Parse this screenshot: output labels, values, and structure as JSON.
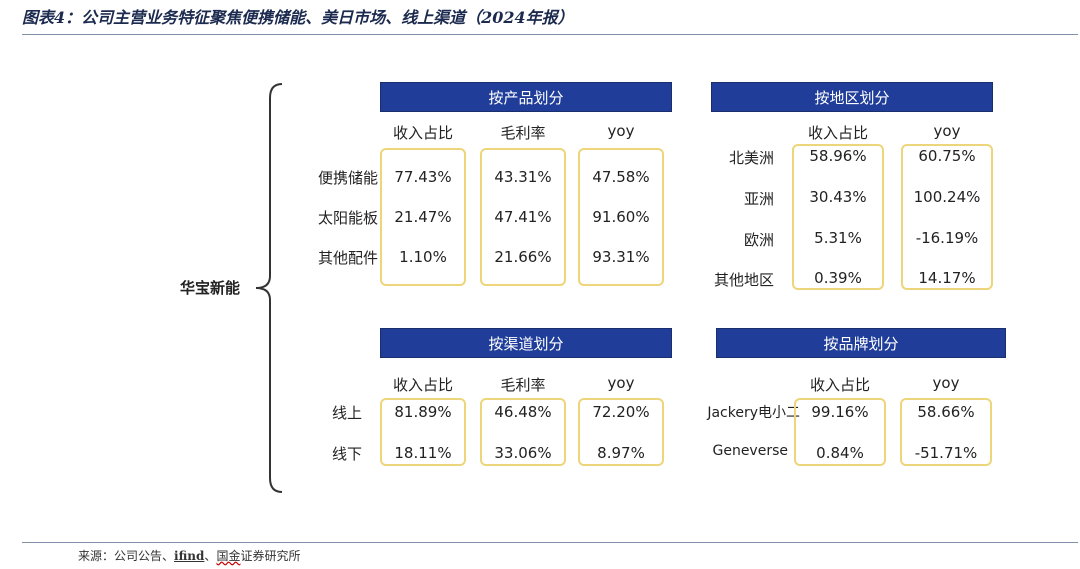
{
  "title": "图表4：公司主营业务特征聚焦便携储能、美日市场、线上渠道（2024年报）",
  "company": "华宝新能",
  "source": {
    "prefix": "来源：公司公告、",
    "ifind": "ifind",
    "sep": "、",
    "guojin": "国金",
    "suffix": "证券研究所"
  },
  "by_product": {
    "header": "按产品划分",
    "columns": [
      "收入占比",
      "毛利率",
      "yoy"
    ],
    "rows": [
      {
        "label": "便携储能",
        "values": [
          "77.43%",
          "43.31%",
          "47.58%"
        ]
      },
      {
        "label": "太阳能板",
        "values": [
          "21.47%",
          "47.41%",
          "91.60%"
        ]
      },
      {
        "label": "其他配件",
        "values": [
          "1.10%",
          "21.66%",
          "93.31%"
        ]
      }
    ]
  },
  "by_region": {
    "header": "按地区划分",
    "columns": [
      "收入占比",
      "yoy"
    ],
    "rows": [
      {
        "label": "北美洲",
        "values": [
          "58.96%",
          "60.75%"
        ]
      },
      {
        "label": "亚洲",
        "values": [
          "30.43%",
          "100.24%"
        ]
      },
      {
        "label": "欧洲",
        "values": [
          "5.31%",
          "-16.19%"
        ]
      },
      {
        "label": "其他地区",
        "values": [
          "0.39%",
          "14.17%"
        ]
      }
    ]
  },
  "by_channel": {
    "header": "按渠道划分",
    "columns": [
      "收入占比",
      "毛利率",
      "yoy"
    ],
    "rows": [
      {
        "label": "线上",
        "values": [
          "81.89%",
          "46.48%",
          "72.20%"
        ]
      },
      {
        "label": "线下",
        "values": [
          "18.11%",
          "33.06%",
          "8.97%"
        ]
      }
    ]
  },
  "by_brand": {
    "header": "按品牌划分",
    "columns": [
      "收入占比",
      "yoy"
    ],
    "rows": [
      {
        "label": "Jackery电小二",
        "values": [
          "99.16%",
          "58.66%"
        ]
      },
      {
        "label": "Geneverse",
        "values": [
          "0.84%",
          "-51.71%"
        ]
      }
    ]
  },
  "colors": {
    "header_bg": "#1f3d99",
    "box_border": "#ecd57a",
    "rule": "#7f90a8"
  }
}
